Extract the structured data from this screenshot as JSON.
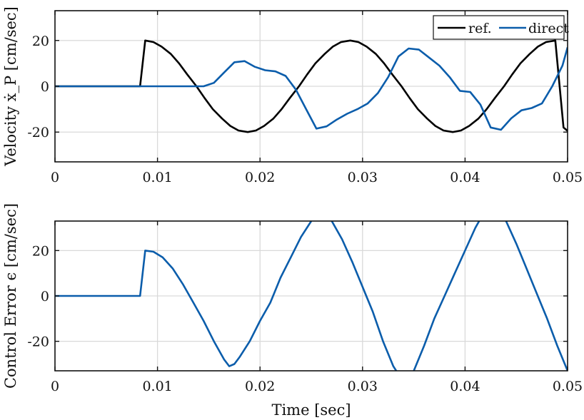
{
  "chart_data": [
    {
      "type": "line",
      "xlim": [
        0,
        0.05
      ],
      "ylim": [
        -33,
        33
      ],
      "x_ticks": [
        0,
        0.01,
        0.02,
        0.03,
        0.04,
        0.05
      ],
      "x_tick_labels": [
        "0",
        "0.01",
        "0.02",
        "0.03",
        "0.04",
        "0.05"
      ],
      "y_ticks": [
        -20,
        0,
        20
      ],
      "y_tick_labels": [
        "-20",
        "0",
        "20"
      ],
      "xlabel": "",
      "ylabel": "Velocity ẋ_P [cm/sec]",
      "grid": true,
      "legend_position": "top-right",
      "series": [
        {
          "name": "ref.",
          "color": "#000000",
          "x": [
            0,
            0.0083,
            0.0088,
            0.0096,
            0.0104,
            0.0113,
            0.0121,
            0.0129,
            0.0138,
            0.0146,
            0.0154,
            0.0163,
            0.0171,
            0.0179,
            0.0188,
            0.0196,
            0.0204,
            0.0213,
            0.0221,
            0.0229,
            0.0238,
            0.0246,
            0.0254,
            0.0263,
            0.0271,
            0.0279,
            0.0288,
            0.0296,
            0.0304,
            0.0313,
            0.0321,
            0.0329,
            0.0338,
            0.0346,
            0.0354,
            0.0363,
            0.0371,
            0.0379,
            0.0388,
            0.0396,
            0.0404,
            0.0413,
            0.0421,
            0.0429,
            0.0438,
            0.0446,
            0.0454,
            0.0463,
            0.0471,
            0.0479,
            0.0488,
            0.0496,
            0.05
          ],
          "y": [
            0,
            0,
            20,
            19.3,
            17.3,
            14.1,
            10.0,
            5.2,
            0.0,
            -5.2,
            -10.0,
            -14.1,
            -17.3,
            -19.3,
            -20,
            -19.3,
            -17.3,
            -14.1,
            -10.0,
            -5.2,
            0.0,
            5.2,
            10.0,
            14.1,
            17.3,
            19.3,
            20,
            19.3,
            17.3,
            14.1,
            10.0,
            5.2,
            0.0,
            -5.2,
            -10.0,
            -14.1,
            -17.3,
            -19.3,
            -20,
            -19.3,
            -17.3,
            -14.1,
            -10.0,
            -5.2,
            0.0,
            5.2,
            10.0,
            14.1,
            17.3,
            19.3,
            20,
            -18.0,
            -19.5
          ]
        },
        {
          "name": "direct",
          "color": "#0b5dab",
          "x": [
            0,
            0.005,
            0.01,
            0.0145,
            0.0155,
            0.0165,
            0.0175,
            0.0185,
            0.0195,
            0.0205,
            0.0215,
            0.0225,
            0.0235,
            0.0245,
            0.0255,
            0.0265,
            0.0275,
            0.0285,
            0.0295,
            0.0305,
            0.0315,
            0.0325,
            0.0335,
            0.0345,
            0.0355,
            0.0365,
            0.0375,
            0.0385,
            0.0395,
            0.0405,
            0.0415,
            0.0425,
            0.0435,
            0.0445,
            0.0455,
            0.0465,
            0.0475,
            0.0485,
            0.0495,
            0.05
          ],
          "y": [
            0,
            0,
            0,
            0,
            1.5,
            6,
            10.5,
            11,
            8.5,
            7,
            6.5,
            4.5,
            -1.5,
            -10,
            -18.5,
            -17.5,
            -14.5,
            -12,
            -10,
            -7.5,
            -3,
            4,
            13,
            16.5,
            16,
            12.5,
            9,
            4,
            -2,
            -2.5,
            -8,
            -18,
            -19,
            -14,
            -10.5,
            -9.5,
            -7.5,
            0,
            9,
            17
          ]
        }
      ]
    },
    {
      "type": "line",
      "xlim": [
        0,
        0.05
      ],
      "ylim": [
        -33,
        33
      ],
      "x_ticks": [
        0,
        0.01,
        0.02,
        0.03,
        0.04,
        0.05
      ],
      "x_tick_labels": [
        "0",
        "0.01",
        "0.02",
        "0.03",
        "0.04",
        "0.05"
      ],
      "y_ticks": [
        -20,
        0,
        20
      ],
      "y_tick_labels": [
        "-20",
        "0",
        "20"
      ],
      "xlabel": "Time [sec]",
      "ylabel": "Control Error ϵ [cm/sec]",
      "grid": true,
      "series": [
        {
          "color": "#0b5dab",
          "x": [
            0,
            0.0083,
            0.0088,
            0.0096,
            0.0105,
            0.0115,
            0.0125,
            0.0135,
            0.0145,
            0.0155,
            0.0165,
            0.017,
            0.0175,
            0.018,
            0.019,
            0.02,
            0.021,
            0.022,
            0.023,
            0.024,
            0.025,
            0.026,
            0.027,
            0.028,
            0.029,
            0.03,
            0.031,
            0.032,
            0.033,
            0.034,
            0.035,
            0.036,
            0.037,
            0.038,
            0.039,
            0.04,
            0.041,
            0.042,
            0.043,
            0.044,
            0.045,
            0.046,
            0.047,
            0.048,
            0.049,
            0.05
          ],
          "y": [
            0,
            0,
            20,
            19.5,
            17,
            12,
            5,
            -3,
            -11,
            -20,
            -28,
            -31,
            -30,
            -27,
            -20,
            -11,
            -3,
            8,
            17,
            26,
            33,
            39,
            33,
            25,
            15,
            4,
            -7,
            -20,
            -31,
            -38,
            -33,
            -22,
            -10,
            0,
            10,
            20,
            30,
            38,
            39,
            33,
            23,
            12,
            1,
            -10,
            -22,
            -33
          ]
        }
      ]
    }
  ]
}
